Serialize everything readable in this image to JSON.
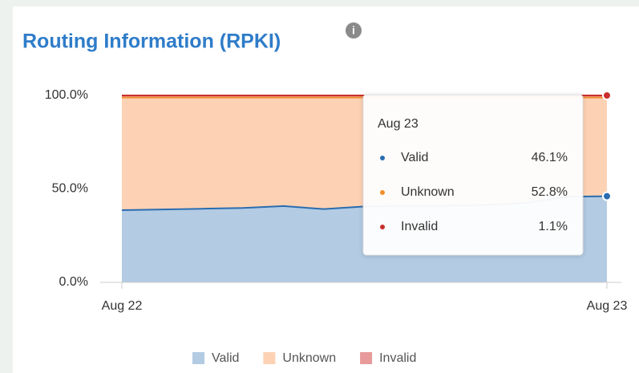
{
  "chart_data": {
    "type": "stacked-area",
    "title": "Routing Information (RPKI)",
    "categories": [
      "Aug 22",
      null,
      null,
      null,
      null,
      null,
      null,
      null,
      null,
      null,
      null,
      null,
      "Aug 23"
    ],
    "series": [
      {
        "name": "Valid",
        "color": "#2a6db0",
        "fill": "#b3cbe3",
        "values": [
          38.6,
          39.0,
          39.4,
          39.8,
          40.8,
          39.2,
          40.6,
          41.0,
          41.0,
          41.4,
          42.5,
          45.8,
          46.1
        ],
        "value_labels": [
          null,
          null,
          null,
          null,
          null,
          null,
          null,
          null,
          null,
          null,
          null,
          null,
          "46.1%"
        ]
      },
      {
        "name": "Unknown",
        "color": "#f28e2b",
        "fill": "#fdd2b4",
        "values": [
          60.3,
          59.9,
          59.5,
          59.1,
          58.1,
          59.7,
          58.3,
          57.9,
          57.9,
          57.5,
          56.4,
          53.1,
          52.8
        ],
        "value_labels": [
          null,
          null,
          null,
          null,
          null,
          null,
          null,
          null,
          null,
          null,
          null,
          null,
          "52.8%"
        ]
      },
      {
        "name": "Invalid",
        "color": "#c9302c",
        "fill": "#e89a9a",
        "values": [
          1.1,
          1.1,
          1.1,
          1.1,
          1.1,
          1.1,
          1.1,
          1.1,
          1.1,
          1.1,
          1.1,
          1.1,
          1.1
        ],
        "value_labels": [
          null,
          null,
          null,
          null,
          null,
          null,
          null,
          null,
          null,
          null,
          null,
          null,
          "1.1%"
        ]
      }
    ],
    "ylim": [
      0,
      100
    ],
    "yticks": [
      {
        "value": 0,
        "label": "0.0%"
      },
      {
        "value": 50,
        "label": "50.0%"
      },
      {
        "value": 100,
        "label": "100.0%"
      }
    ],
    "grid": false,
    "legend": "bottom",
    "tooltip_index": 12
  }
}
